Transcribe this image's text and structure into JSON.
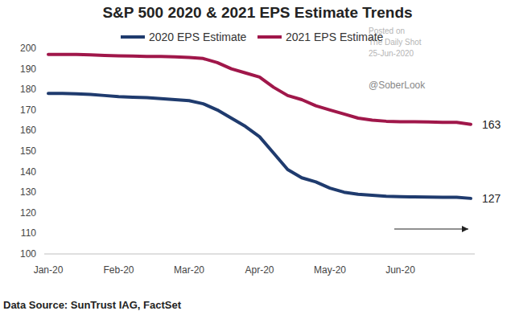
{
  "chart_data": {
    "type": "line",
    "title": "S&P 500 2020 & 2021 EPS Estimate Trends",
    "categories": [
      "Jan-20",
      null,
      null,
      null,
      null,
      "Feb-20",
      null,
      null,
      null,
      null,
      "Mar-20",
      null,
      null,
      null,
      null,
      "Apr-20",
      null,
      null,
      null,
      null,
      "May-20",
      null,
      null,
      null,
      null,
      "Jun-20",
      null,
      null,
      null,
      null,
      null
    ],
    "series": [
      {
        "name": "2020 EPS Estimate",
        "color": "#1f3b6e",
        "values": [
          178,
          178,
          177.8,
          177.5,
          177,
          176.5,
          176.2,
          176,
          175.5,
          175,
          174.5,
          173,
          170,
          166,
          162,
          157,
          149,
          141,
          137,
          135,
          132,
          130,
          129,
          128.5,
          128,
          127.8,
          127.7,
          127.6,
          127.5,
          127.5,
          127
        ]
      },
      {
        "name": "2021 EPS Estimate",
        "color": "#a0174a",
        "values": [
          197,
          197,
          197,
          196.8,
          196.5,
          196.3,
          196.2,
          196,
          196,
          195.8,
          195.5,
          195,
          193,
          190,
          188,
          186,
          181,
          177,
          175,
          172,
          170,
          168,
          166,
          165,
          164.5,
          164.3,
          164.3,
          164.2,
          164,
          164,
          163
        ]
      }
    ],
    "ylim": [
      100,
      200
    ],
    "yticks": [
      100,
      110,
      120,
      130,
      140,
      150,
      160,
      170,
      180,
      190,
      200
    ],
    "grid": false,
    "legend": "top",
    "annotations": [
      "127",
      "163"
    ],
    "watermark": [
      "Posted on",
      "The Daily Shot",
      "25-Jun-2020"
    ],
    "credit": "@SoberLook",
    "source": "Data Source: SunTrust IAG, FactSet"
  }
}
